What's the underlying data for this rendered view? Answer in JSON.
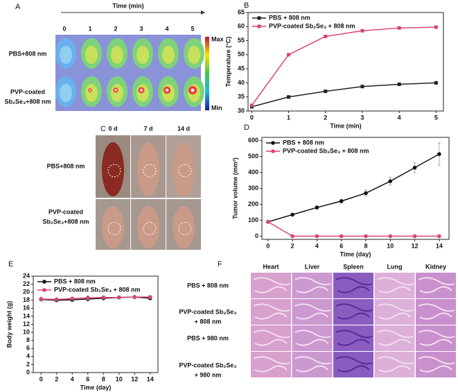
{
  "chart_data": [
    {
      "type": "line",
      "label": "B",
      "x_title": "Time (min)",
      "y_title": "Temperature (°C)",
      "x": [
        0,
        1,
        2,
        3,
        4,
        5
      ],
      "xlim": [
        -0.1,
        5.2
      ],
      "xticks": [
        0,
        1,
        2,
        3,
        4,
        5
      ],
      "ylim": [
        30,
        65
      ],
      "yticks": [
        30,
        35,
        40,
        45,
        50,
        55,
        60,
        65
      ],
      "marker": "square",
      "legend": "top-left",
      "series": [
        {
          "name": "PBS + 808 nm",
          "color": "#222222",
          "values": [
            31.5,
            35,
            37,
            38.7,
            39.5,
            40
          ]
        },
        {
          "name": "PVP-coated Sb₂Se₃ + 808 nm",
          "color": "#d8456e",
          "values": [
            32,
            50,
            56.5,
            58.5,
            59.5,
            59.8
          ]
        }
      ]
    },
    {
      "type": "line",
      "label": "D",
      "x_title": "Time (day)",
      "y_title": "Tumor volume (mm³)",
      "x": [
        0,
        2,
        4,
        6,
        8,
        10,
        12,
        14
      ],
      "xlim": [
        -0.5,
        14.8
      ],
      "xticks": [
        0,
        2,
        4,
        6,
        8,
        10,
        12,
        14
      ],
      "ylim": [
        -20,
        620
      ],
      "yticks": [
        0,
        100,
        200,
        300,
        400,
        500,
        600
      ],
      "marker": "circle",
      "legend": "top-left",
      "series": [
        {
          "name": "PBS + 808 nm",
          "color": "#111111",
          "values": [
            90,
            135,
            180,
            220,
            270,
            345,
            430,
            515
          ],
          "errors": [
            5,
            8,
            10,
            12,
            20,
            25,
            30,
            70
          ]
        },
        {
          "name": "PVP-coated Sb₂Se₃ + 808 nm",
          "color": "#d8456e",
          "values": [
            90,
            0,
            0,
            0,
            0,
            0,
            0,
            0
          ]
        }
      ]
    },
    {
      "type": "line",
      "label": "E",
      "x_title": "Time (day)",
      "y_title": "Body weight (g)",
      "x": [
        0,
        2,
        4,
        6,
        8,
        10,
        12,
        14
      ],
      "xlim": [
        -1,
        15
      ],
      "xticks": [
        0,
        2,
        4,
        6,
        8,
        10,
        12,
        14
      ],
      "ylim": [
        0,
        24
      ],
      "yticks": [
        0,
        2,
        4,
        6,
        8,
        10,
        12,
        14,
        16,
        18,
        20,
        22,
        24
      ],
      "marker": "circle",
      "legend": "top-left",
      "series": [
        {
          "name": "PBS + 808 nm",
          "color": "#111111",
          "values": [
            18.2,
            18.0,
            18.1,
            18.3,
            18.5,
            18.7,
            18.8,
            18.5
          ],
          "errors": [
            0.4,
            0.4,
            0.4,
            0.5,
            0.4,
            0.4,
            0.4,
            0.4
          ]
        },
        {
          "name": "PVP-coated Sb₂Se₃ + 808 nm",
          "color": "#d8456e",
          "values": [
            18.3,
            18.2,
            18.4,
            18.6,
            18.7,
            18.7,
            18.8,
            18.8
          ],
          "errors": [
            0.5,
            0.4,
            0.4,
            0.5,
            0.4,
            0.4,
            0.4,
            0.4
          ]
        }
      ]
    }
  ],
  "panel_a": {
    "label": "A",
    "x_title": "Time (min)",
    "times": [
      "0",
      "1",
      "2",
      "3",
      "4",
      "5"
    ],
    "rows": [
      [
        "PBS+808 nm"
      ],
      [
        "PVP-coated",
        "Sb₂Se₃+808 nm"
      ]
    ],
    "scale_max": "Max",
    "scale_min": "Min"
  },
  "panel_c": {
    "label": "C",
    "columns": [
      "0 d",
      "7 d",
      "14 d"
    ],
    "rows": [
      [
        "PBS+808 nm"
      ],
      [
        "PVP-coated",
        "Sb₂Se₃+808 nm"
      ]
    ]
  },
  "panel_f": {
    "label": "F",
    "columns": [
      "Heart",
      "Liver",
      "Spleen",
      "Lung",
      "Kidney"
    ],
    "rows": [
      [
        "PBS + 808 nm"
      ],
      [
        "PVP-coated Sb₂Se₃",
        "+ 808 nm"
      ],
      [
        "PBS + 980 nm"
      ],
      [
        "PVP-coated Sb₂Se₃",
        "+ 980 nm"
      ]
    ]
  }
}
